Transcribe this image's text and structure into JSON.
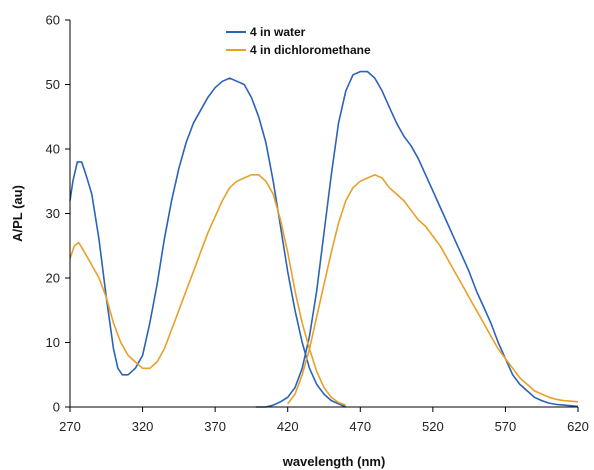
{
  "chart_data": {
    "type": "line",
    "title": "",
    "xlabel": "wavelength (nm)",
    "ylabel": "A/PL (au)",
    "xlim": [
      270,
      620
    ],
    "ylim": [
      0,
      60
    ],
    "x_ticks": [
      270,
      320,
      370,
      420,
      470,
      520,
      570,
      620
    ],
    "y_ticks": [
      0,
      10,
      20,
      30,
      40,
      50,
      60
    ],
    "grid": false,
    "legend_position": "top-center",
    "series": [
      {
        "name": "4 in water",
        "color": "#2a63b8",
        "segments": [
          {
            "kind": "absorption",
            "x": [
              270,
              272,
              275,
              278,
              281,
              285,
              290,
              295,
              300,
              303,
              306,
              310,
              315,
              320,
              325,
              330,
              335,
              340,
              345,
              350,
              355,
              360,
              365,
              370,
              375,
              380,
              385,
              390,
              395,
              400,
              405,
              410,
              415,
              420,
              425,
              430,
              435,
              440,
              445,
              450,
              455,
              460
            ],
            "y": [
              32,
              35,
              38,
              38,
              36,
              33,
              26,
              17,
              9,
              6,
              5,
              5,
              6,
              8,
              13,
              19,
              26,
              32,
              37,
              41,
              44,
              46,
              48,
              49.5,
              50.5,
              51,
              50.5,
              50,
              48,
              45,
              41,
              35,
              28,
              21,
              15,
              10,
              6,
              3.5,
              2,
              1,
              0.5,
              0
            ]
          },
          {
            "kind": "emission",
            "x": [
              398,
              405,
              410,
              415,
              420,
              425,
              430,
              435,
              440,
              445,
              450,
              455,
              460,
              465,
              470,
              475,
              480,
              485,
              490,
              495,
              500,
              505,
              510,
              515,
              520,
              525,
              530,
              535,
              540,
              545,
              550,
              555,
              560,
              565,
              570,
              575,
              580,
              585,
              590,
              595,
              600,
              605,
              610,
              615,
              620
            ],
            "y": [
              0,
              0,
              0.3,
              0.8,
              1.5,
              3,
              6,
              11,
              18,
              27,
              36,
              44,
              49,
              51.5,
              52,
              52,
              51,
              49,
              46.5,
              44,
              42,
              40.5,
              38.5,
              36,
              33.5,
              31,
              28.5,
              26,
              23.5,
              21,
              18,
              15.5,
              13,
              10,
              7.5,
              5,
              3.5,
              2.5,
              1.5,
              1,
              0.6,
              0.4,
              0.3,
              0.2,
              0.1
            ]
          }
        ]
      },
      {
        "name": "4 in dichloromethane",
        "color": "#e8a028",
        "segments": [
          {
            "kind": "absorption",
            "x": [
              270,
              273,
              276,
              280,
              285,
              290,
              295,
              300,
              305,
              310,
              315,
              320,
              325,
              330,
              335,
              340,
              345,
              350,
              355,
              360,
              365,
              370,
              375,
              380,
              385,
              390,
              395,
              400,
              405,
              410,
              415,
              420,
              425,
              430,
              435,
              440,
              445,
              450,
              455,
              460
            ],
            "y": [
              23,
              25,
              25.5,
              24,
              22,
              20,
              17,
              13,
              10,
              8,
              7,
              6,
              6,
              7,
              9,
              12,
              15,
              18,
              21,
              24,
              27,
              29.5,
              32,
              34,
              35,
              35.5,
              36,
              36,
              35,
              33,
              29,
              24,
              18,
              13,
              9,
              5.5,
              3,
              1.5,
              0.7,
              0.3
            ]
          },
          {
            "kind": "emission",
            "x": [
              420,
              425,
              430,
              435,
              440,
              445,
              450,
              455,
              460,
              465,
              470,
              475,
              480,
              485,
              490,
              495,
              500,
              505,
              510,
              515,
              520,
              525,
              530,
              535,
              540,
              545,
              550,
              555,
              560,
              565,
              570,
              575,
              580,
              585,
              590,
              595,
              600,
              605,
              610,
              615,
              620
            ],
            "y": [
              0.5,
              2,
              5,
              9,
              14,
              19,
              24,
              28.5,
              32,
              34,
              35,
              35.5,
              36,
              35.5,
              34,
              33,
              32,
              30.5,
              29,
              28,
              26.5,
              25,
              23,
              21,
              19,
              17,
              15,
              13,
              11,
              9,
              7.5,
              6,
              4.5,
              3.5,
              2.5,
              2,
              1.5,
              1.2,
              1,
              0.9,
              0.8
            ]
          }
        ]
      }
    ]
  }
}
